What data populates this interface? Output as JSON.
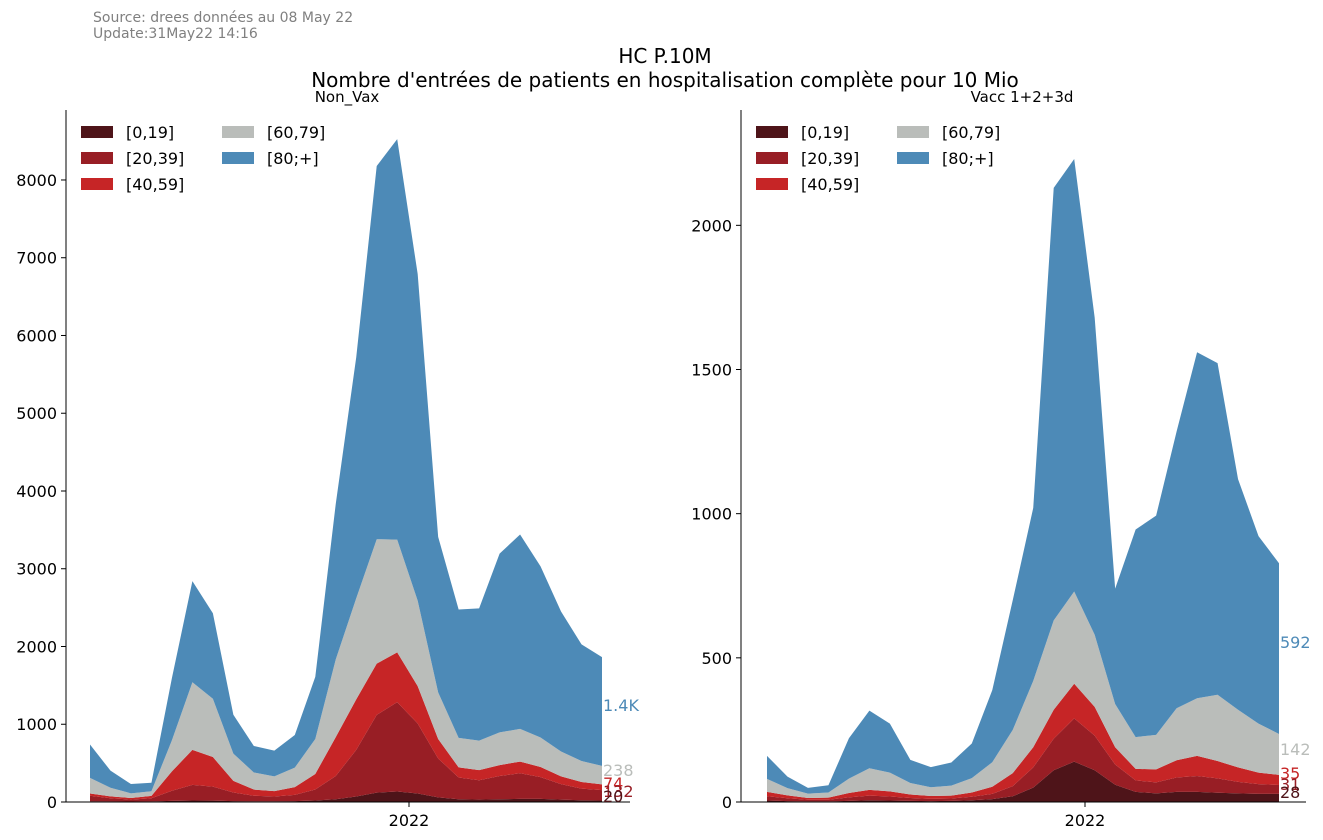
{
  "header": {
    "source_line": "Source: drees données au 08 May 22",
    "update_line": "Update:31May22 14:16",
    "title_line1": "HC P.10M",
    "title_line2": "Nombre d'entrées de patients en hospitalisation complète pour 10 Mio"
  },
  "colors": {
    "[0,19]": "#4e1419",
    "[20,39]": "#981e25",
    "[40,59]": "#c62526",
    "[60,79]": "#babdba",
    "[80;+]": "#4d8ab7"
  },
  "chart_data": [
    {
      "type": "area",
      "stacked": true,
      "title": "Non_Vax",
      "xlabel": "",
      "ylabel": "",
      "x_tick_labels": [
        "2022"
      ],
      "ylim": [
        0,
        8900
      ],
      "y_ticks": [
        0,
        1000,
        2000,
        3000,
        4000,
        5000,
        6000,
        7000,
        8000
      ],
      "legend_position": "top-left",
      "x": [
        0,
        0.04,
        0.08,
        0.12,
        0.16,
        0.2,
        0.24,
        0.28,
        0.32,
        0.36,
        0.4,
        0.44,
        0.48,
        0.52,
        0.56,
        0.6,
        0.64,
        0.68,
        0.72,
        0.76,
        0.8,
        0.84,
        0.88,
        0.92,
        0.96,
        1.0
      ],
      "series": [
        {
          "name": "[0,19]",
          "values": [
            10,
            8,
            6,
            8,
            14,
            20,
            18,
            12,
            10,
            10,
            12,
            20,
            35,
            70,
            120,
            135,
            110,
            60,
            35,
            30,
            35,
            40,
            40,
            30,
            22,
            20
          ]
        },
        {
          "name": "[20,39]",
          "values": [
            70,
            40,
            25,
            40,
            130,
            200,
            180,
            110,
            70,
            60,
            80,
            140,
            300,
            600,
            1000,
            1150,
            900,
            500,
            280,
            250,
            300,
            330,
            280,
            200,
            150,
            132
          ]
        },
        {
          "name": "[40,59]",
          "values": [
            30,
            25,
            20,
            30,
            250,
            450,
            380,
            150,
            80,
            70,
            100,
            200,
            500,
            650,
            660,
            640,
            480,
            250,
            130,
            130,
            140,
            150,
            130,
            100,
            85,
            74
          ]
        },
        {
          "name": "[60,79]",
          "values": [
            200,
            110,
            60,
            60,
            400,
            870,
            750,
            350,
            220,
            190,
            250,
            450,
            1000,
            1300,
            1600,
            1450,
            1100,
            600,
            380,
            380,
            420,
            420,
            380,
            320,
            270,
            238
          ]
        },
        {
          "name": "[80;+]",
          "values": [
            430,
            220,
            120,
            110,
            800,
            1300,
            1100,
            500,
            340,
            330,
            420,
            800,
            2000,
            3100,
            4800,
            5150,
            4200,
            2000,
            1650,
            1700,
            2300,
            2500,
            2200,
            1800,
            1500,
            1400
          ]
        }
      ],
      "end_labels": [
        "1.4K",
        "238",
        "74",
        "132",
        "20"
      ]
    },
    {
      "type": "area",
      "stacked": true,
      "title": "Vacc 1+2+3d",
      "xlabel": "",
      "ylabel": "",
      "x_tick_labels": [
        "2022"
      ],
      "ylim": [
        0,
        2400
      ],
      "y_ticks": [
        0,
        500,
        1000,
        1500,
        2000
      ],
      "legend_position": "top-left",
      "x": [
        0,
        0.04,
        0.08,
        0.12,
        0.16,
        0.2,
        0.24,
        0.28,
        0.32,
        0.36,
        0.4,
        0.44,
        0.48,
        0.52,
        0.56,
        0.6,
        0.64,
        0.68,
        0.72,
        0.76,
        0.8,
        0.84,
        0.88,
        0.92,
        0.96,
        1.0
      ],
      "series": [
        {
          "name": "[0,19]",
          "values": [
            5,
            3,
            2,
            2,
            4,
            6,
            5,
            4,
            3,
            4,
            6,
            10,
            20,
            50,
            110,
            140,
            110,
            60,
            35,
            30,
            35,
            35,
            32,
            30,
            28,
            28
          ]
        },
        {
          "name": "[20,39]",
          "values": [
            15,
            10,
            6,
            6,
            12,
            16,
            14,
            10,
            8,
            8,
            12,
            18,
            35,
            70,
            110,
            150,
            120,
            70,
            40,
            38,
            50,
            55,
            50,
            40,
            34,
            31
          ]
        },
        {
          "name": "[40,59]",
          "values": [
            15,
            10,
            6,
            7,
            15,
            20,
            18,
            12,
            10,
            10,
            15,
            25,
            45,
            70,
            100,
            120,
            100,
            60,
            40,
            45,
            60,
            70,
            60,
            50,
            40,
            35
          ]
        },
        {
          "name": "[60,79]",
          "values": [
            45,
            25,
            15,
            18,
            50,
            75,
            65,
            40,
            30,
            35,
            50,
            85,
            150,
            230,
            310,
            320,
            250,
            150,
            110,
            120,
            180,
            200,
            230,
            200,
            170,
            142
          ]
        },
        {
          "name": "[80;+]",
          "values": [
            80,
            40,
            20,
            25,
            140,
            200,
            170,
            80,
            70,
            80,
            120,
            250,
            450,
            600,
            1500,
            1500,
            1100,
            400,
            720,
            760,
            960,
            1200,
            1150,
            800,
            650,
            592
          ]
        }
      ],
      "end_labels": [
        "592",
        "142",
        "35",
        "31",
        "28"
      ]
    }
  ]
}
